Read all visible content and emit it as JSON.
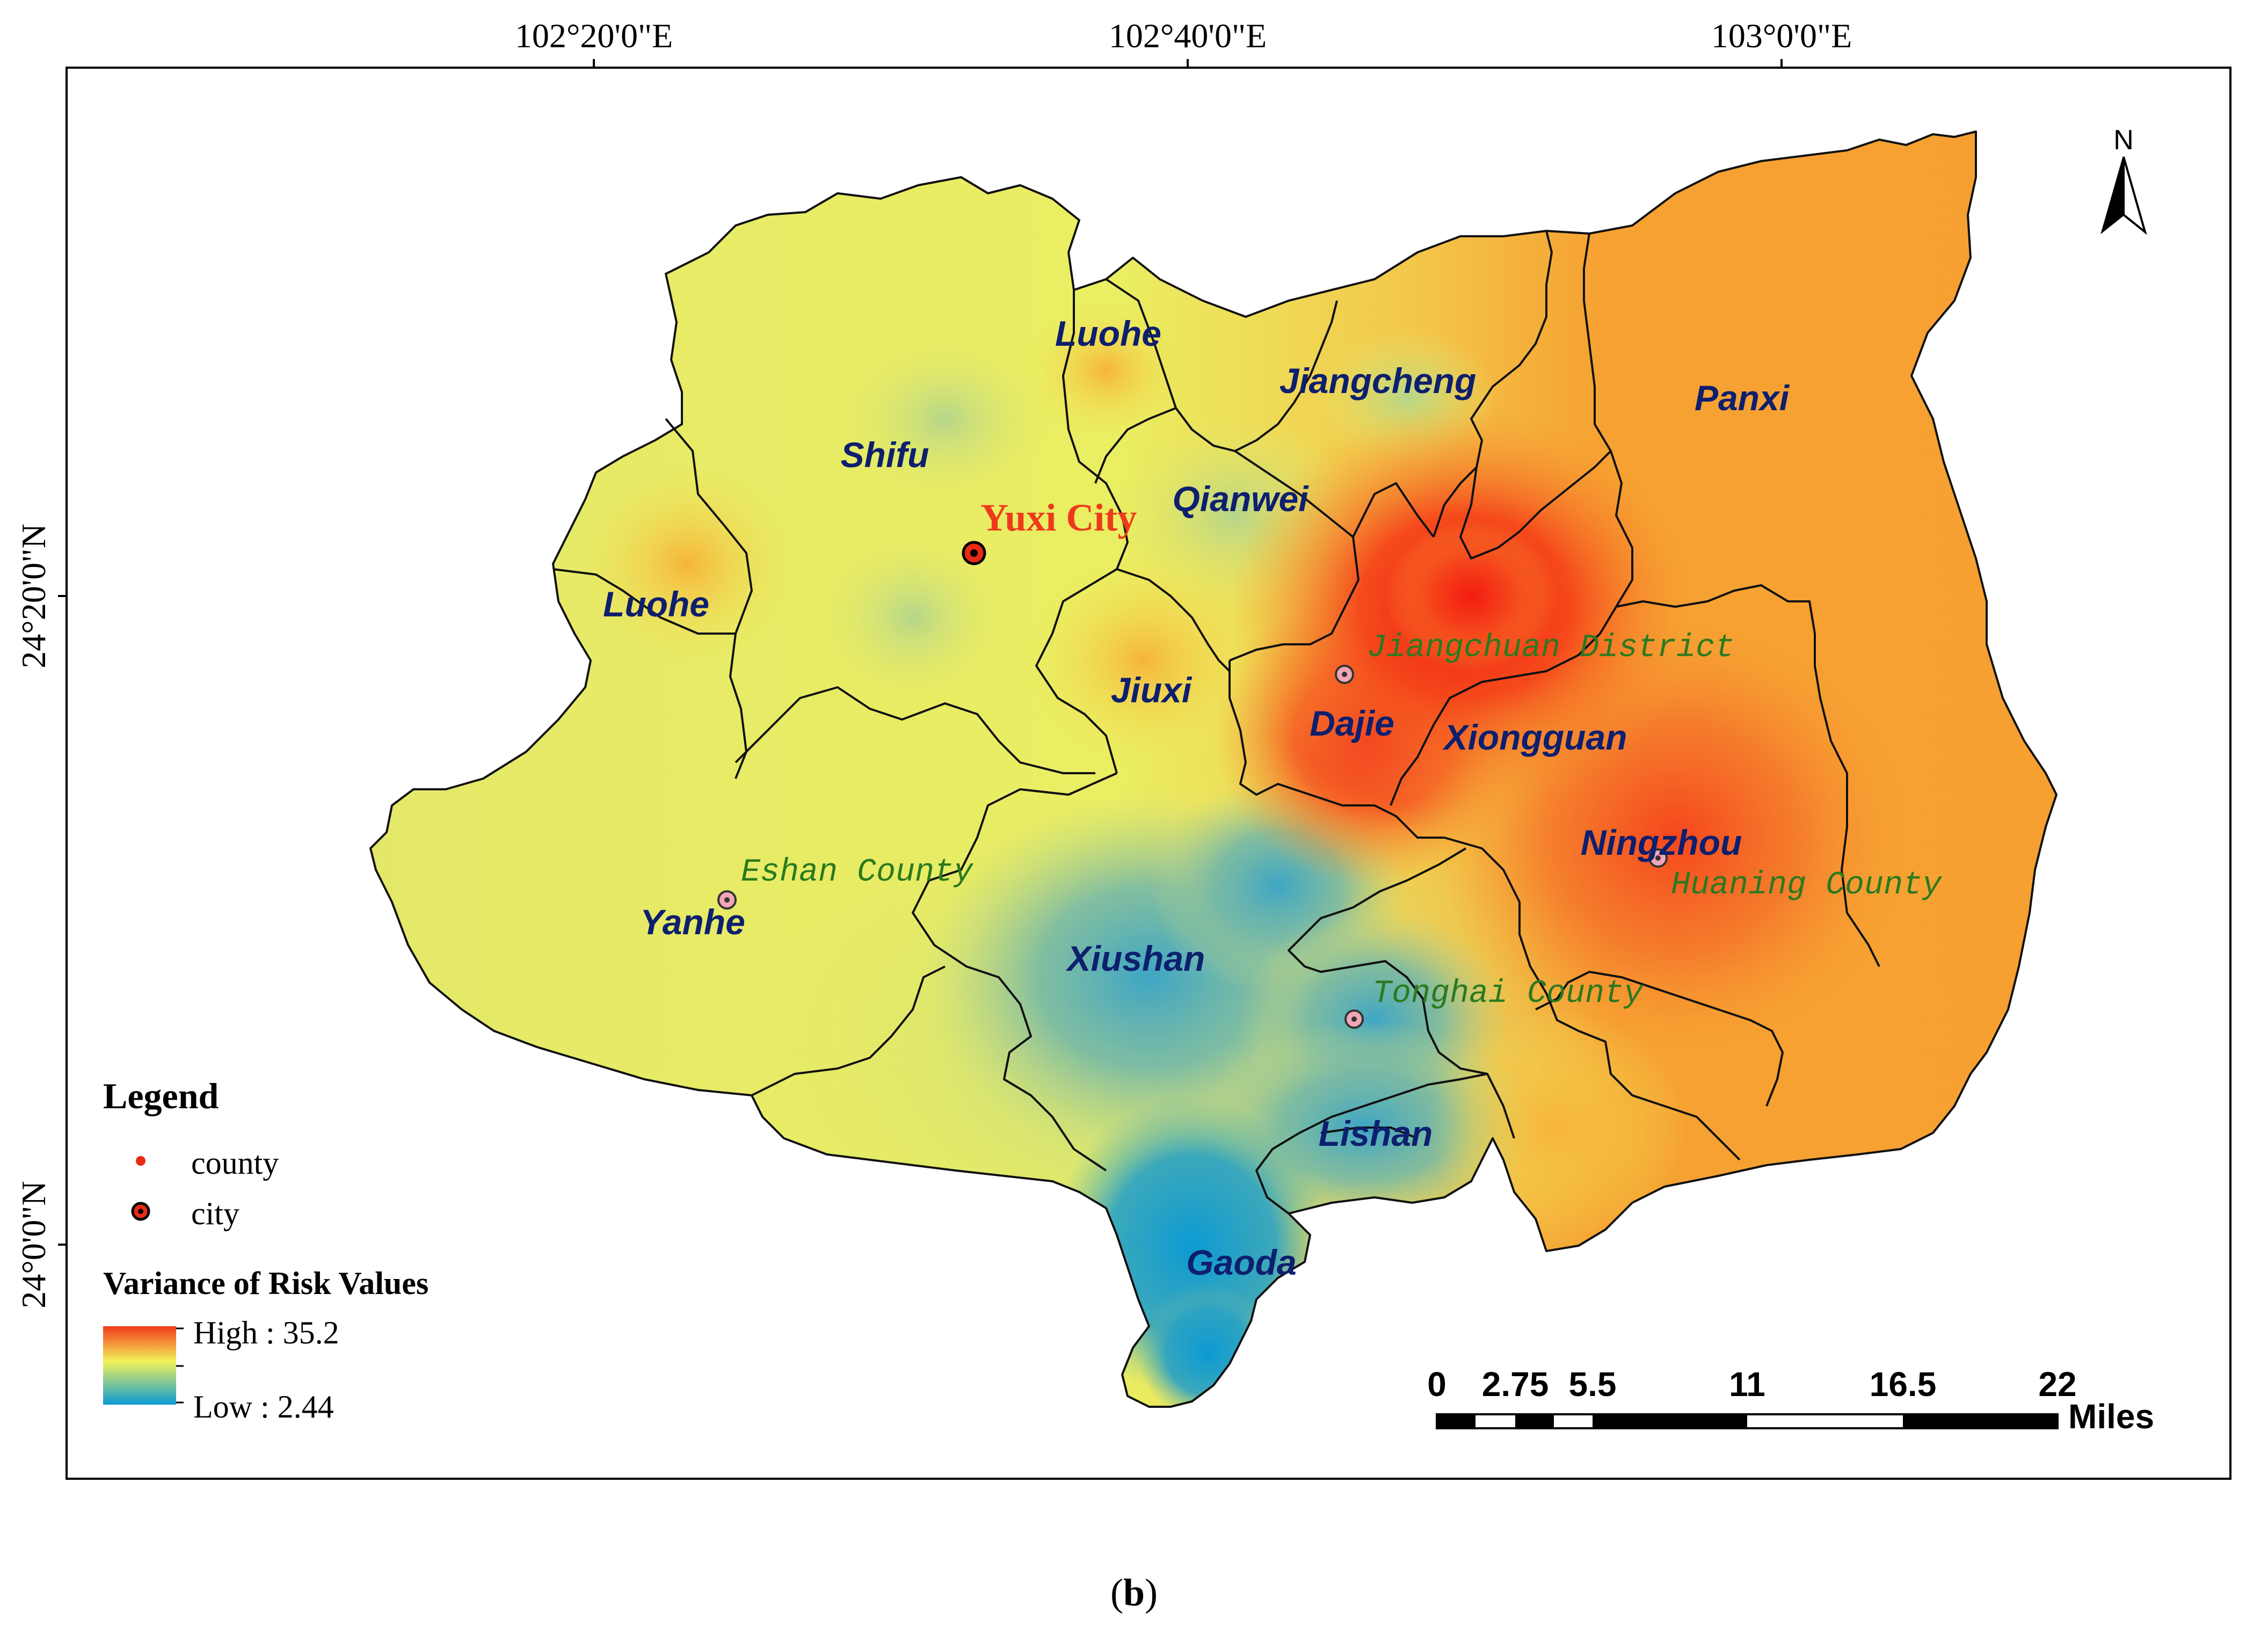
{
  "axes": {
    "top_ticks": [
      "102°20'0\"E",
      "102°40'0\"E",
      "103°0'0\"E"
    ],
    "left_ticks": [
      "24°20'0\"N",
      "24°0'0\"N"
    ]
  },
  "north_arrow": {
    "label": "N"
  },
  "city": {
    "name": "Yuxi City"
  },
  "counties": [
    "Jiangchuan District",
    "Eshan County",
    "Huaning County",
    "Tonghai County"
  ],
  "towns": [
    "Luohe",
    "Jiangcheng",
    "Panxi",
    "Shifu",
    "Qianwei",
    "Luohe",
    "Jiuxi",
    "Dajie",
    "Xiongguan",
    "Ningzhou",
    "Yanhe",
    "Xiushan",
    "Lishan",
    "Gaoda"
  ],
  "legend": {
    "title": "Legend",
    "county_label": "county",
    "city_label": "city",
    "variance_title": "Variance of Risk Values",
    "high_label": "High : 35.2",
    "low_label": "Low : 2.44",
    "high_value": 35.2,
    "low_value": 2.44,
    "high_color": "#f23a1c",
    "mid_color": "#f2f25a",
    "low_color": "#0c9ad2"
  },
  "scale_bar": {
    "ticks": [
      "0",
      "2.75",
      "5.5",
      "11",
      "16.5",
      "22"
    ],
    "unit": "Miles"
  },
  "caption": {
    "open": "(",
    "letter": "b",
    "close": ")"
  }
}
